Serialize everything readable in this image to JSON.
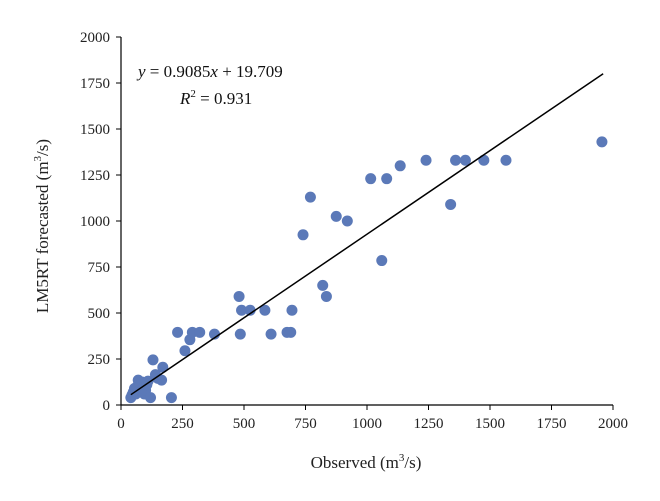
{
  "chart_data": {
    "type": "scatter",
    "xlabel": "Observed (m³/s)",
    "ylabel": "LM5RT forecasted (m³/s)",
    "xlim": [
      0,
      2000
    ],
    "ylim": [
      0,
      2000
    ],
    "xticks": [
      0,
      250,
      500,
      750,
      1000,
      1250,
      1500,
      1750,
      2000
    ],
    "yticks": [
      0,
      250,
      500,
      750,
      1000,
      1250,
      1500,
      1750,
      2000
    ],
    "grid": false,
    "marker_color": "#5b79b8",
    "line_color": "#000000",
    "annotations": {
      "equation": "y = 0.9085x + 19.709",
      "r_squared": "R² = 0.931"
    },
    "trendline": {
      "slope": 0.9085,
      "intercept": 19.709,
      "x_range": [
        40,
        1960
      ]
    },
    "points": [
      [
        40,
        40
      ],
      [
        45,
        55
      ],
      [
        50,
        70
      ],
      [
        55,
        90
      ],
      [
        60,
        60
      ],
      [
        65,
        100
      ],
      [
        70,
        135
      ],
      [
        75,
        80
      ],
      [
        80,
        110
      ],
      [
        85,
        125
      ],
      [
        90,
        95
      ],
      [
        95,
        60
      ],
      [
        100,
        80
      ],
      [
        105,
        110
      ],
      [
        110,
        130
      ],
      [
        120,
        40
      ],
      [
        130,
        245
      ],
      [
        140,
        165
      ],
      [
        150,
        145
      ],
      [
        165,
        135
      ],
      [
        170,
        205
      ],
      [
        205,
        40
      ],
      [
        230,
        395
      ],
      [
        260,
        295
      ],
      [
        280,
        355
      ],
      [
        290,
        395
      ],
      [
        320,
        395
      ],
      [
        380,
        385
      ],
      [
        480,
        590
      ],
      [
        485,
        385
      ],
      [
        490,
        515
      ],
      [
        525,
        515
      ],
      [
        585,
        515
      ],
      [
        610,
        385
      ],
      [
        675,
        395
      ],
      [
        690,
        395
      ],
      [
        695,
        515
      ],
      [
        740,
        925
      ],
      [
        770,
        1130
      ],
      [
        820,
        650
      ],
      [
        835,
        590
      ],
      [
        875,
        1025
      ],
      [
        920,
        1000
      ],
      [
        1015,
        1230
      ],
      [
        1060,
        785
      ],
      [
        1080,
        1230
      ],
      [
        1135,
        1300
      ],
      [
        1240,
        1330
      ],
      [
        1340,
        1090
      ],
      [
        1360,
        1330
      ],
      [
        1400,
        1330
      ],
      [
        1475,
        1330
      ],
      [
        1565,
        1330
      ],
      [
        1955,
        1430
      ]
    ]
  }
}
